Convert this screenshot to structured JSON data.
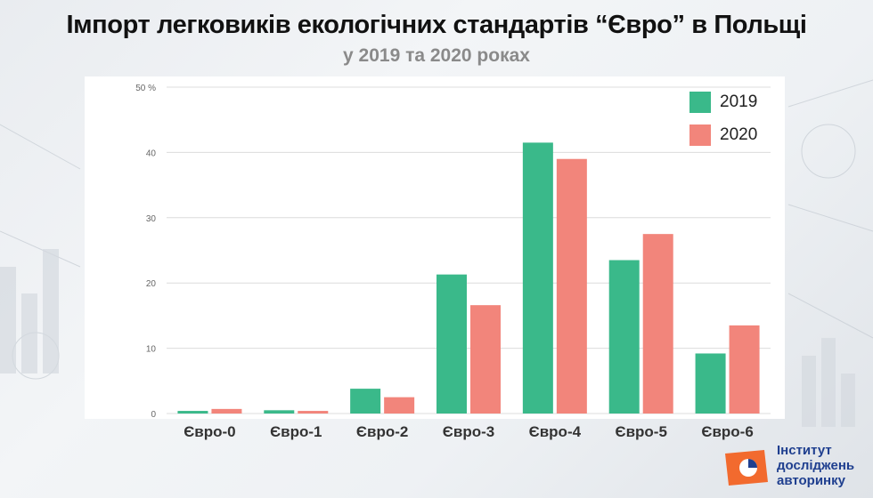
{
  "title": "Імпорт легковиків екологічних стандартів “Євро” в Польщі",
  "subtitle": "у 2019 та 2020 роках",
  "logo": {
    "line1": "Інститут",
    "line2": "досліджень",
    "line3": "авторинку"
  },
  "colors": {
    "y2019": "#3ab98a",
    "y2020": "#f2857b",
    "grid": "#dcdcdc",
    "tick": "#666666"
  },
  "chart_data": {
    "type": "bar",
    "categories": [
      "Євро-0",
      "Євро-1",
      "Євро-2",
      "Євро-3",
      "Євро-4",
      "Євро-5",
      "Євро-6"
    ],
    "series": [
      {
        "name": "2019",
        "values": [
          0.4,
          0.5,
          3.8,
          21.3,
          41.5,
          23.5,
          9.2
        ]
      },
      {
        "name": "2020",
        "values": [
          0.7,
          0.4,
          2.5,
          16.6,
          39.0,
          27.5,
          13.5
        ]
      }
    ],
    "yticks": [
      "0",
      "10",
      "20",
      "30",
      "40",
      "50 %"
    ],
    "ylim": [
      0,
      50
    ],
    "grid": true,
    "legend_position": "top-right"
  }
}
